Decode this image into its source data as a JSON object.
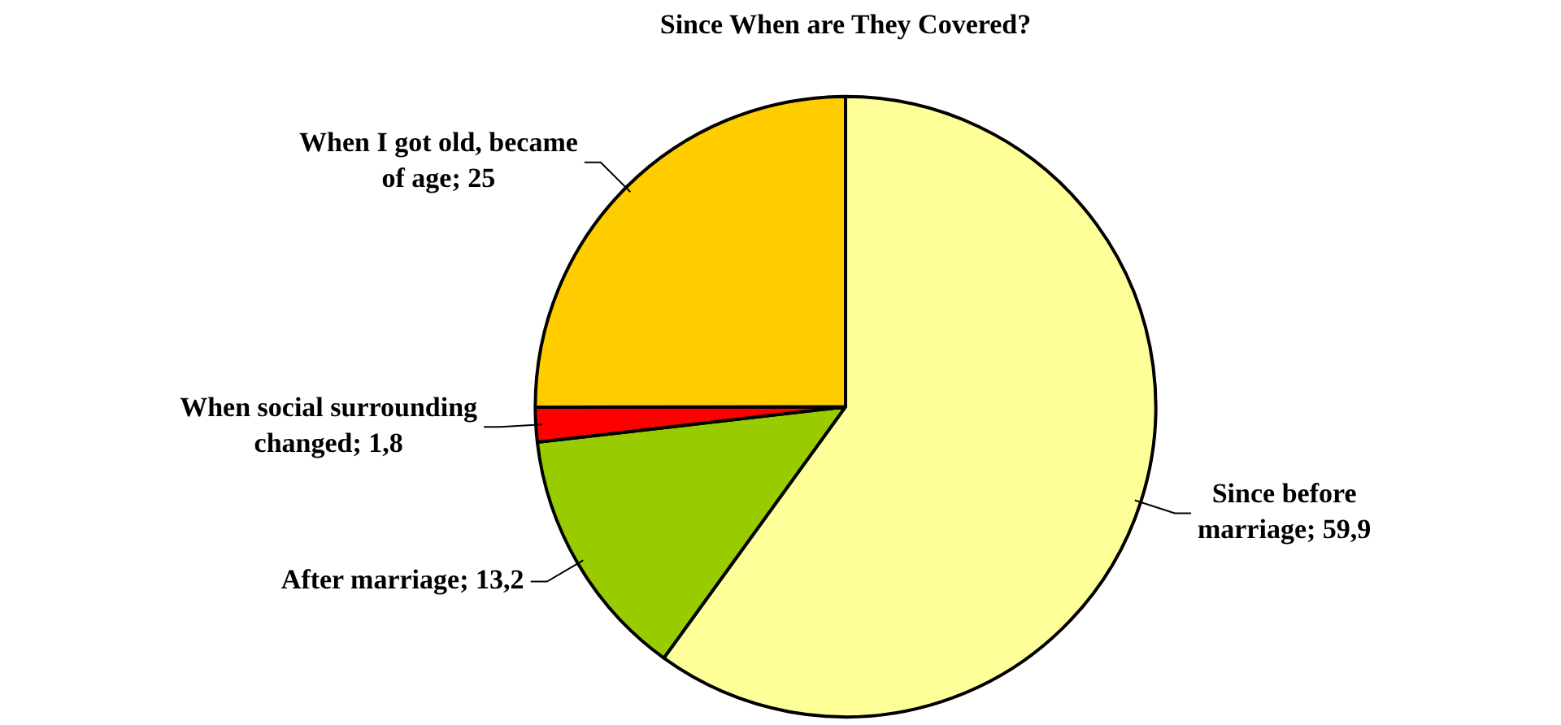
{
  "chart_data": {
    "type": "pie",
    "title": "Since When are They Covered?",
    "categories": [
      "Since before marriage",
      "After marriage",
      "When social surrounding changed",
      "When I got old, became of age"
    ],
    "values": [
      59.9,
      13.2,
      1.8,
      25
    ],
    "colors": [
      "#ffff99",
      "#99cc00",
      "#ff0000",
      "#ffcc00"
    ],
    "value_labels": [
      "59,9",
      "13,2",
      "1,8",
      "25"
    ],
    "legend": false
  }
}
